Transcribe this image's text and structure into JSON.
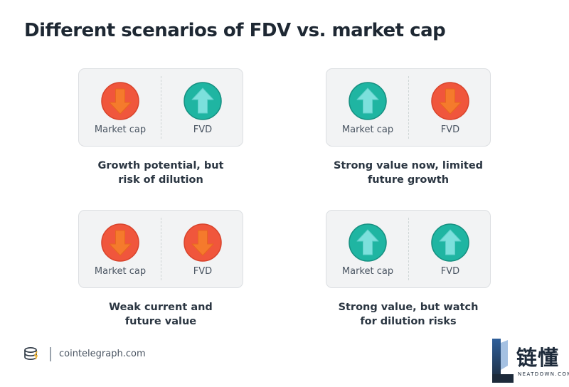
{
  "title": "Different scenarios of FDV vs. market cap",
  "colors": {
    "down_circle": "#f0563c",
    "down_arrow": "#f57a2c",
    "up_circle": "#1fb5a2",
    "up_arrow": "#7ce0dc",
    "card_bg": "#f2f3f4",
    "card_border": "#dcdfe2"
  },
  "scenarios": [
    {
      "left": {
        "label": "Market cap",
        "direction": "down",
        "icon": "arrow-down-icon"
      },
      "right": {
        "label": "FVD",
        "direction": "up",
        "icon": "arrow-up-icon"
      },
      "caption": [
        "Growth potential, but",
        "risk of dilution"
      ]
    },
    {
      "left": {
        "label": "Market cap",
        "direction": "up",
        "icon": "arrow-up-icon"
      },
      "right": {
        "label": "FVD",
        "direction": "down",
        "icon": "arrow-down-icon"
      },
      "caption": [
        "Strong value now, limited",
        "future growth"
      ]
    },
    {
      "left": {
        "label": "Market cap",
        "direction": "down",
        "icon": "arrow-down-icon"
      },
      "right": {
        "label": "FVD",
        "direction": "down",
        "icon": "arrow-down-icon"
      },
      "caption": [
        "Weak current and",
        "future value"
      ]
    },
    {
      "left": {
        "label": "Market cap",
        "direction": "up",
        "icon": "arrow-up-icon"
      },
      "right": {
        "label": "FVD",
        "direction": "up",
        "icon": "arrow-up-icon"
      },
      "caption": [
        "Strong value, but watch",
        "for dilution risks"
      ]
    }
  ],
  "footer": {
    "site": "cointelegraph.com",
    "logo_icon": "coin-stack-icon"
  },
  "watermark": {
    "chinese": "链懂",
    "english": "NEATDOWN.COM"
  }
}
